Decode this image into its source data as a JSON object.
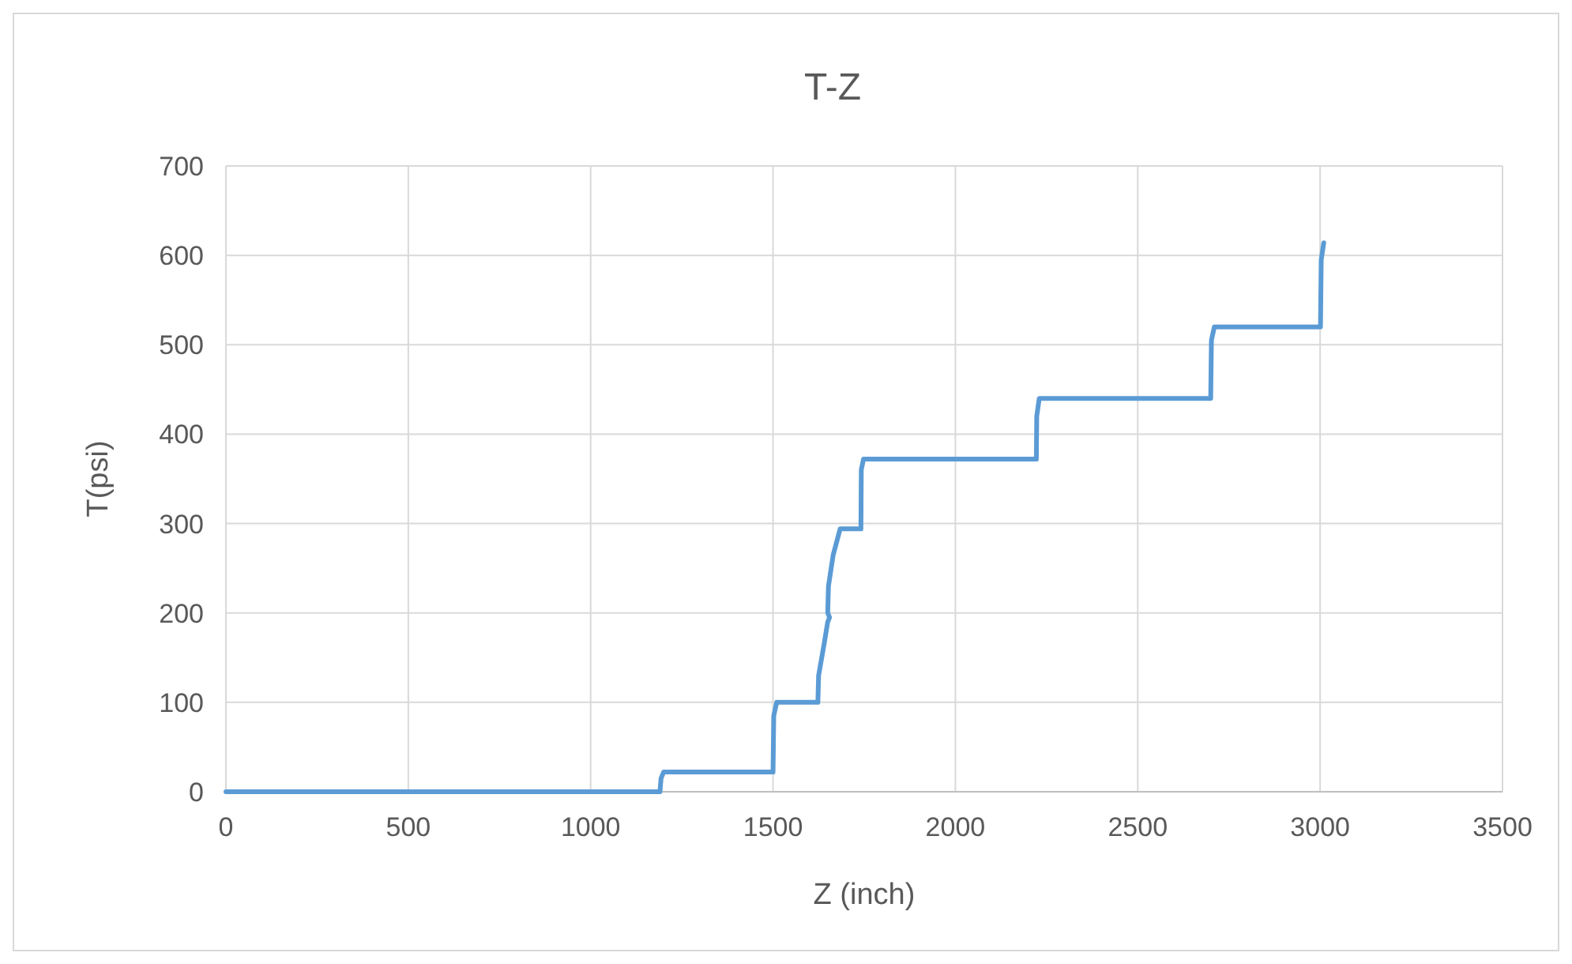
{
  "chart_data": {
    "type": "line",
    "title": "T-Z",
    "xlabel": "Z (inch)",
    "ylabel": "T(psi)",
    "xlim": [
      0,
      3500
    ],
    "xticks": [
      0,
      500,
      1000,
      1500,
      2000,
      2500,
      3000,
      3500
    ],
    "ylim": [
      0,
      700
    ],
    "yticks": [
      0,
      100,
      200,
      300,
      400,
      500,
      600,
      700
    ],
    "grid": true,
    "marker": "none",
    "line_style": "solid",
    "series": [
      {
        "color": "#5b9bd5",
        "x": [
          0,
          1190,
          1193,
          1200,
          1500,
          1502,
          1510,
          1623,
          1625,
          1640,
          1650,
          1655,
          1650,
          1652,
          1665,
          1684,
          1741,
          1742,
          1748,
          2222,
          2223,
          2230,
          2700,
          2702,
          2710,
          3001,
          3003,
          3010
        ],
        "values": [
          0,
          0,
          15,
          22,
          22,
          85,
          100,
          100,
          130,
          165,
          190,
          195,
          200,
          230,
          265,
          294,
          294,
          360,
          372,
          372,
          420,
          440,
          440,
          505,
          520,
          520,
          595,
          614
        ]
      }
    ]
  }
}
